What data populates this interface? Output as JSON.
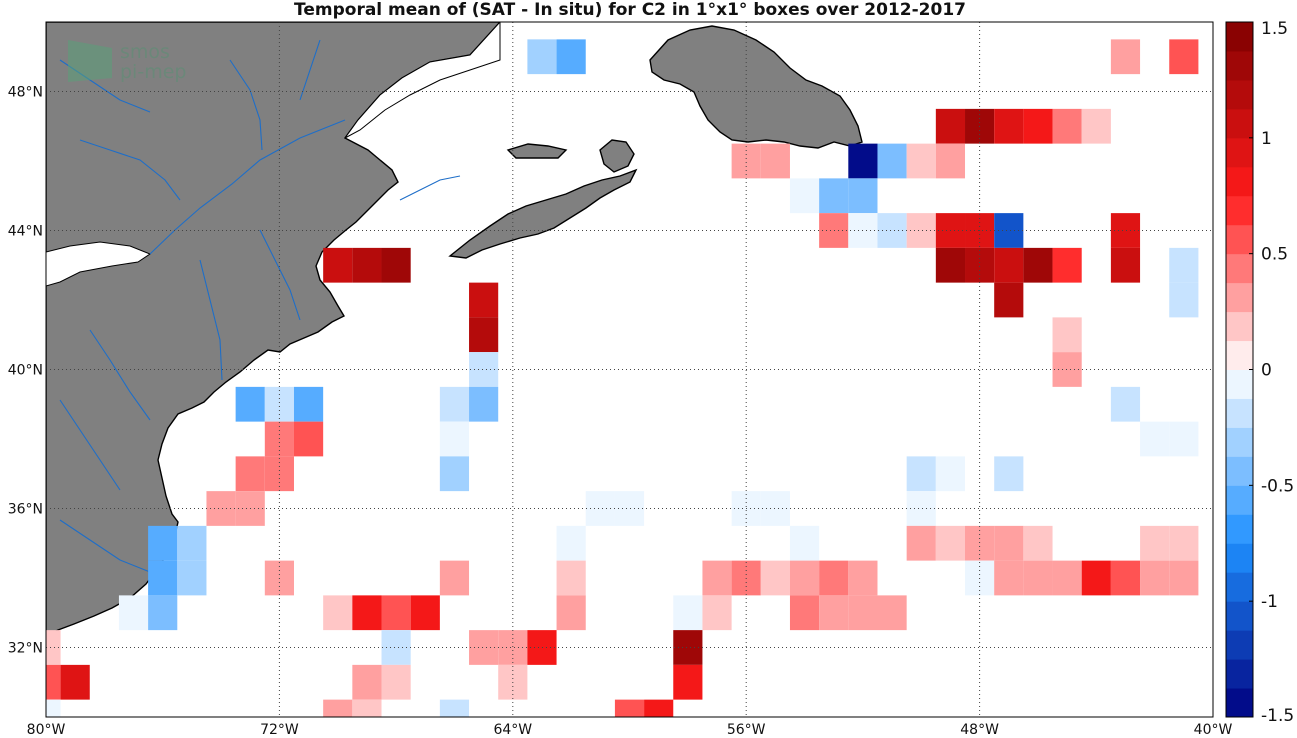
{
  "title": "Temporal mean of (SAT - In situ) for C2 in 1°x1° boxes over 2012-2017",
  "logo": {
    "line1": "smos",
    "line2": "pi-mep"
  },
  "axes": {
    "lon_range": [
      -80,
      -40
    ],
    "lat_range": [
      30,
      50
    ],
    "x_ticks": [
      {
        "value": -80,
        "label": "80°W"
      },
      {
        "value": -72,
        "label": "72°W"
      },
      {
        "value": -64,
        "label": "64°W"
      },
      {
        "value": -56,
        "label": "56°W"
      },
      {
        "value": -48,
        "label": "48°W"
      },
      {
        "value": -40,
        "label": "40°W"
      }
    ],
    "y_ticks": [
      {
        "value": 32,
        "label": "32°N"
      },
      {
        "value": 36,
        "label": "36°N"
      },
      {
        "value": 40,
        "label": "40°N"
      },
      {
        "value": 44,
        "label": "44°N"
      },
      {
        "value": 48,
        "label": "48°N"
      }
    ],
    "grid": true
  },
  "colorbar": {
    "range": [
      -1.5,
      1.5
    ],
    "levels": 24,
    "ticks": [
      {
        "value": 1.5,
        "label": "1.5"
      },
      {
        "value": 1,
        "label": "1"
      },
      {
        "value": 0.5,
        "label": "0.5"
      },
      {
        "value": 0,
        "label": "0"
      },
      {
        "value": -0.5,
        "label": "-0.5"
      },
      {
        "value": -1,
        "label": "-1"
      },
      {
        "value": -1.5,
        "label": "-1.5"
      }
    ],
    "colors": {
      "neg_max": "#00007f",
      "neg_mid": "#1e90ff",
      "zero": "#ffffff",
      "pos_mid": "#ff1a1a",
      "pos_max": "#7f0000"
    }
  },
  "colors": {
    "land": "#808080",
    "coast": "#000000",
    "river": "#1e6ec8",
    "grid": "#444444"
  },
  "chart_data": {
    "type": "heatmap",
    "cell_size_deg": 1,
    "cells": [
      {
        "lon": -63,
        "lat": 49,
        "value": -0.35
      },
      {
        "lon": -62,
        "lat": 49,
        "value": -0.55
      },
      {
        "lon": -43,
        "lat": 49,
        "value": 0.25
      },
      {
        "lon": -41,
        "lat": 49,
        "value": 0.55
      },
      {
        "lon": -49,
        "lat": 47,
        "value": 1.0
      },
      {
        "lon": -48,
        "lat": 47,
        "value": 1.3
      },
      {
        "lon": -47,
        "lat": 47,
        "value": 0.95
      },
      {
        "lon": -46,
        "lat": 47,
        "value": 0.8
      },
      {
        "lon": -45,
        "lat": 47,
        "value": 0.4
      },
      {
        "lon": -44,
        "lat": 47,
        "value": 0.15
      },
      {
        "lon": -56,
        "lat": 46,
        "value": 0.25
      },
      {
        "lon": -55,
        "lat": 46,
        "value": 0.25
      },
      {
        "lon": -52,
        "lat": 46,
        "value": -1.4
      },
      {
        "lon": -51,
        "lat": 46,
        "value": -0.45
      },
      {
        "lon": -50,
        "lat": 46,
        "value": 0.15
      },
      {
        "lon": -49,
        "lat": 46,
        "value": 0.35
      },
      {
        "lon": -54,
        "lat": 45,
        "value": -0.1
      },
      {
        "lon": -53,
        "lat": 45,
        "value": -0.4
      },
      {
        "lon": -52,
        "lat": 45,
        "value": -0.5
      },
      {
        "lon": -53,
        "lat": 44,
        "value": 0.4
      },
      {
        "lon": -52,
        "lat": 44,
        "value": -0.1
      },
      {
        "lon": -51,
        "lat": 44,
        "value": -0.2
      },
      {
        "lon": -50,
        "lat": 44,
        "value": 0.15
      },
      {
        "lon": -49,
        "lat": 44,
        "value": 0.9
      },
      {
        "lon": -48,
        "lat": 44,
        "value": 0.9
      },
      {
        "lon": -47,
        "lat": 44,
        "value": -1.1
      },
      {
        "lon": -43,
        "lat": 44,
        "value": 0.9
      },
      {
        "lon": -70,
        "lat": 43,
        "value": 1.1
      },
      {
        "lon": -69,
        "lat": 43,
        "value": 1.15
      },
      {
        "lon": -68,
        "lat": 43,
        "value": 1.35
      },
      {
        "lon": -49,
        "lat": 43,
        "value": 1.35
      },
      {
        "lon": -48,
        "lat": 43,
        "value": 1.2
      },
      {
        "lon": -47,
        "lat": 43,
        "value": 1.1
      },
      {
        "lon": -46,
        "lat": 43,
        "value": 1.3
      },
      {
        "lon": -45,
        "lat": 43,
        "value": 0.7
      },
      {
        "lon": -43,
        "lat": 43,
        "value": 1.05
      },
      {
        "lon": -41,
        "lat": 43,
        "value": -0.2
      },
      {
        "lon": -65,
        "lat": 42,
        "value": 1.1
      },
      {
        "lon": -47,
        "lat": 42,
        "value": 1.2
      },
      {
        "lon": -41,
        "lat": 42,
        "value": -0.2
      },
      {
        "lon": -65,
        "lat": 41,
        "value": 1.15
      },
      {
        "lon": -45,
        "lat": 41,
        "value": 0.15
      },
      {
        "lon": -65,
        "lat": 40,
        "value": -0.25
      },
      {
        "lon": -45,
        "lat": 40,
        "value": 0.35
      },
      {
        "lon": -73,
        "lat": 39,
        "value": -0.55
      },
      {
        "lon": -72,
        "lat": 39,
        "value": -0.25
      },
      {
        "lon": -71,
        "lat": 39,
        "value": -0.55
      },
      {
        "lon": -66,
        "lat": 39,
        "value": -0.2
      },
      {
        "lon": -65,
        "lat": 39,
        "value": -0.45
      },
      {
        "lon": -43,
        "lat": 39,
        "value": -0.2
      },
      {
        "lon": -72,
        "lat": 38,
        "value": 0.4
      },
      {
        "lon": -71,
        "lat": 38,
        "value": 0.55
      },
      {
        "lon": -66,
        "lat": 38,
        "value": -0.1
      },
      {
        "lon": -42,
        "lat": 38,
        "value": -0.1
      },
      {
        "lon": -41,
        "lat": 38,
        "value": -0.1
      },
      {
        "lon": -73,
        "lat": 37,
        "value": 0.45
      },
      {
        "lon": -72,
        "lat": 37,
        "value": 0.4
      },
      {
        "lon": -66,
        "lat": 37,
        "value": -0.35
      },
      {
        "lon": -50,
        "lat": 37,
        "value": -0.25
      },
      {
        "lon": -49,
        "lat": 37,
        "value": -0.1
      },
      {
        "lon": -47,
        "lat": 37,
        "value": -0.25
      },
      {
        "lon": -74,
        "lat": 36,
        "value": 0.3
      },
      {
        "lon": -73,
        "lat": 36,
        "value": 0.3
      },
      {
        "lon": -61,
        "lat": 36,
        "value": -0.1
      },
      {
        "lon": -60,
        "lat": 36,
        "value": -0.1
      },
      {
        "lon": -56,
        "lat": 36,
        "value": -0.1
      },
      {
        "lon": -55,
        "lat": 36,
        "value": -0.1
      },
      {
        "lon": -50,
        "lat": 36,
        "value": -0.1
      },
      {
        "lon": -76,
        "lat": 35,
        "value": -0.55
      },
      {
        "lon": -75,
        "lat": 35,
        "value": -0.35
      },
      {
        "lon": -62,
        "lat": 35,
        "value": -0.1
      },
      {
        "lon": -54,
        "lat": 35,
        "value": -0.1
      },
      {
        "lon": -50,
        "lat": 35,
        "value": 0.35
      },
      {
        "lon": -49,
        "lat": 35,
        "value": 0.15
      },
      {
        "lon": -48,
        "lat": 35,
        "value": 0.25
      },
      {
        "lon": -47,
        "lat": 35,
        "value": 0.3
      },
      {
        "lon": -46,
        "lat": 35,
        "value": 0.15
      },
      {
        "lon": -42,
        "lat": 35,
        "value": 0.2
      },
      {
        "lon": -41,
        "lat": 35,
        "value": 0.2
      },
      {
        "lon": -76,
        "lat": 34,
        "value": -0.55
      },
      {
        "lon": -75,
        "lat": 34,
        "value": -0.35
      },
      {
        "lon": -72,
        "lat": 34,
        "value": 0.35
      },
      {
        "lon": -66,
        "lat": 34,
        "value": 0.35
      },
      {
        "lon": -62,
        "lat": 34,
        "value": 0.15
      },
      {
        "lon": -57,
        "lat": 34,
        "value": 0.35
      },
      {
        "lon": -56,
        "lat": 34,
        "value": 0.4
      },
      {
        "lon": -55,
        "lat": 34,
        "value": 0.15
      },
      {
        "lon": -54,
        "lat": 34,
        "value": 0.3
      },
      {
        "lon": -53,
        "lat": 34,
        "value": 0.45
      },
      {
        "lon": -52,
        "lat": 34,
        "value": 0.35
      },
      {
        "lon": -48,
        "lat": 34,
        "value": -0.1
      },
      {
        "lon": -47,
        "lat": 34,
        "value": 0.25
      },
      {
        "lon": -46,
        "lat": 34,
        "value": 0.25
      },
      {
        "lon": -45,
        "lat": 34,
        "value": 0.35
      },
      {
        "lon": -44,
        "lat": 34,
        "value": 0.8
      },
      {
        "lon": -43,
        "lat": 34,
        "value": 0.6
      },
      {
        "lon": -42,
        "lat": 34,
        "value": 0.3
      },
      {
        "lon": -41,
        "lat": 34,
        "value": 0.3
      },
      {
        "lon": -77,
        "lat": 33,
        "value": -0.1
      },
      {
        "lon": -76,
        "lat": 33,
        "value": -0.45
      },
      {
        "lon": -70,
        "lat": 33,
        "value": 0.15
      },
      {
        "lon": -69,
        "lat": 33,
        "value": 0.75
      },
      {
        "lon": -68,
        "lat": 33,
        "value": 0.5
      },
      {
        "lon": -67,
        "lat": 33,
        "value": 0.8
      },
      {
        "lon": -62,
        "lat": 33,
        "value": 0.3
      },
      {
        "lon": -58,
        "lat": 33,
        "value": -0.1
      },
      {
        "lon": -57,
        "lat": 33,
        "value": 0.15
      },
      {
        "lon": -54,
        "lat": 33,
        "value": 0.45
      },
      {
        "lon": -53,
        "lat": 33,
        "value": 0.3
      },
      {
        "lon": -52,
        "lat": 33,
        "value": 0.3
      },
      {
        "lon": -51,
        "lat": 33,
        "value": 0.3
      },
      {
        "lon": -80,
        "lat": 32,
        "value": 0.15
      },
      {
        "lon": -68,
        "lat": 32,
        "value": -0.15
      },
      {
        "lon": -65,
        "lat": 32,
        "value": 0.3
      },
      {
        "lon": -64,
        "lat": 32,
        "value": 0.3
      },
      {
        "lon": -63,
        "lat": 32,
        "value": 0.75
      },
      {
        "lon": -58,
        "lat": 32,
        "value": 1.3
      },
      {
        "lon": -80,
        "lat": 31,
        "value": 0.6
      },
      {
        "lon": -79,
        "lat": 31,
        "value": 0.95
      },
      {
        "lon": -69,
        "lat": 31,
        "value": 0.3
      },
      {
        "lon": -68,
        "lat": 31,
        "value": 0.15
      },
      {
        "lon": -64,
        "lat": 31,
        "value": 0.15
      },
      {
        "lon": -58,
        "lat": 31,
        "value": 0.75
      },
      {
        "lon": -80,
        "lat": 30,
        "value": -0.1
      },
      {
        "lon": -70,
        "lat": 30,
        "value": 0.3
      },
      {
        "lon": -69,
        "lat": 30,
        "value": 0.2
      },
      {
        "lon": -66,
        "lat": 30,
        "value": -0.2
      },
      {
        "lon": -60,
        "lat": 30,
        "value": 0.6
      },
      {
        "lon": -59,
        "lat": 30,
        "value": 0.75
      }
    ]
  }
}
